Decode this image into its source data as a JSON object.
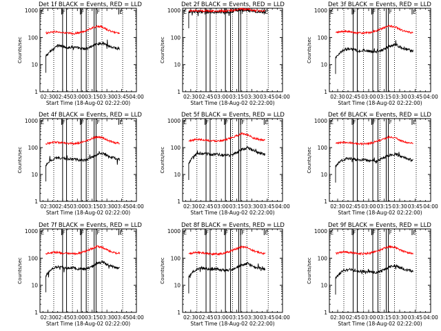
{
  "figure": {
    "xlabel": "Start Time (18-Aug-02 02:22:00)",
    "ylabel": "Counts/sec",
    "colors": {
      "events": "#000000",
      "lld": "#ff0000",
      "axes": "#000000"
    }
  },
  "chart_data": [
    {
      "type": "line",
      "title": "Det 1f BLACK = Events, RED = LLD",
      "xlabel": "Start Time (18-Aug-02 02:22:00)",
      "ylabel": "Counts/sec",
      "x_ticks": [
        "02:30",
        "02:45",
        "03:00",
        "03:15",
        "03:30",
        "03:45",
        "04:00"
      ],
      "y_ticks": [
        "1",
        "10",
        "100",
        "1000"
      ],
      "y_scale": "log",
      "ylim": [
        1,
        1200
      ],
      "xlim": [
        "02:22",
        "04:00"
      ],
      "flags": [
        {
          "label": "E",
          "at": "02:22"
        },
        {
          "label": "F",
          "at": "02:44"
        },
        {
          "label": "F",
          "at": "03:03"
        },
        {
          "label": "F",
          "at": "03:19"
        },
        {
          "label": "E",
          "at": "03:42"
        }
      ],
      "boxes": [
        [
          "02:45",
          "02:49"
        ],
        [
          "03:04",
          "03:09"
        ],
        [
          "03:17",
          "03:19"
        ]
      ],
      "dotted_lines": [
        "02:36",
        "02:55",
        "03:11",
        "03:25",
        "03:46"
      ],
      "x_knots": [
        "02:28",
        "02:32",
        "02:36",
        "02:40",
        "02:45",
        "02:50",
        "02:56",
        "03:02",
        "03:08",
        "03:14",
        "03:20",
        "03:26",
        "03:32",
        "03:38",
        "03:43"
      ],
      "series": [
        {
          "name": "Events",
          "values": [
            20,
            30,
            40,
            50,
            48,
            42,
            45,
            40,
            38,
            46,
            58,
            62,
            48,
            42,
            38
          ]
        },
        {
          "name": "LLD",
          "values": [
            145,
            155,
            165,
            160,
            150,
            145,
            140,
            150,
            175,
            215,
            260,
            240,
            180,
            155,
            148
          ]
        }
      ]
    },
    {
      "type": "line",
      "title": "Det 2f BLACK = Events, RED = LLD",
      "xlabel": "Start Time (18-Aug-02 02:22:00)",
      "ylabel": "Counts/sec",
      "x_ticks": [
        "02:30",
        "02:45",
        "03:00",
        "03:15",
        "03:30",
        "03:45",
        "04:00"
      ],
      "y_ticks": [
        "1",
        "10",
        "100",
        "1000"
      ],
      "y_scale": "log",
      "ylim": [
        1,
        1200
      ],
      "xlim": [
        "02:22",
        "04:00"
      ],
      "flags": [
        {
          "label": "E",
          "at": "02:22"
        },
        {
          "label": "F",
          "at": "02:44"
        },
        {
          "label": "F",
          "at": "03:03"
        },
        {
          "label": "F",
          "at": "03:19"
        },
        {
          "label": "E",
          "at": "03:42"
        }
      ],
      "boxes": [
        [
          "02:45",
          "02:49"
        ],
        [
          "03:04",
          "03:09"
        ],
        [
          "03:17",
          "03:19"
        ]
      ],
      "dotted_lines": [
        "02:36",
        "02:55",
        "03:11",
        "03:25",
        "03:46"
      ],
      "x_knots": [
        "02:28",
        "02:32",
        "02:36",
        "02:40",
        "02:45",
        "02:50",
        "02:56",
        "03:02",
        "03:08",
        "03:14",
        "03:20",
        "03:26",
        "03:32",
        "03:38",
        "03:43"
      ],
      "series": [
        {
          "name": "Events",
          "values": [
            880,
            900,
            910,
            900,
            880,
            870,
            870,
            880,
            900,
            980,
            1060,
            1000,
            920,
            900,
            890
          ]
        },
        {
          "name": "LLD",
          "values": [
            960,
            970,
            980,
            970,
            960,
            950,
            950,
            960,
            980,
            1050,
            1120,
            1080,
            1000,
            970,
            960
          ]
        }
      ]
    },
    {
      "type": "line",
      "title": "Det 3f BLACK = Events, RED = LLD",
      "xlabel": "Start Time (18-Aug-02 02:22:00)",
      "ylabel": "Counts/sec",
      "x_ticks": [
        "02:30",
        "02:45",
        "03:00",
        "03:15",
        "03:30",
        "03:45",
        "04:00"
      ],
      "y_ticks": [
        "1",
        "10",
        "100",
        "1000"
      ],
      "y_scale": "log",
      "ylim": [
        1,
        1200
      ],
      "xlim": [
        "02:22",
        "04:00"
      ],
      "flags": [
        {
          "label": "E",
          "at": "02:22"
        },
        {
          "label": "F",
          "at": "02:44"
        },
        {
          "label": "F",
          "at": "03:03"
        },
        {
          "label": "F",
          "at": "03:19"
        },
        {
          "label": "E",
          "at": "03:42"
        }
      ],
      "boxes": [
        [
          "02:45",
          "02:49"
        ],
        [
          "03:04",
          "03:09"
        ],
        [
          "03:17",
          "03:19"
        ]
      ],
      "dotted_lines": [
        "02:36",
        "02:55",
        "03:11",
        "03:25",
        "03:46"
      ],
      "x_knots": [
        "02:28",
        "02:32",
        "02:36",
        "02:40",
        "02:45",
        "02:50",
        "02:56",
        "03:02",
        "03:08",
        "03:14",
        "03:20",
        "03:26",
        "03:32",
        "03:38",
        "03:43"
      ],
      "series": [
        {
          "name": "Events",
          "values": [
            18,
            28,
            34,
            38,
            36,
            32,
            34,
            30,
            30,
            36,
            48,
            55,
            42,
            36,
            32
          ]
        },
        {
          "name": "LLD",
          "values": [
            150,
            160,
            170,
            165,
            155,
            150,
            145,
            155,
            180,
            220,
            270,
            245,
            185,
            160,
            150
          ]
        }
      ]
    },
    {
      "type": "line",
      "title": "Det 4f BLACK = Events, RED = LLD",
      "xlabel": "Start Time (18-Aug-02 02:22:00)",
      "ylabel": "Counts/sec",
      "x_ticks": [
        "02:30",
        "02:45",
        "03:00",
        "03:15",
        "03:30",
        "03:45",
        "04:00"
      ],
      "y_ticks": [
        "1",
        "10",
        "100",
        "1000"
      ],
      "y_scale": "log",
      "ylim": [
        1,
        1200
      ],
      "xlim": [
        "02:22",
        "04:00"
      ],
      "flags": [
        {
          "label": "E",
          "at": "02:22"
        },
        {
          "label": "F",
          "at": "02:44"
        },
        {
          "label": "F",
          "at": "03:03"
        },
        {
          "label": "F",
          "at": "03:19"
        },
        {
          "label": "E",
          "at": "03:42"
        }
      ],
      "boxes": [
        [
          "02:45",
          "02:49"
        ],
        [
          "03:04",
          "03:09"
        ],
        [
          "03:17",
          "03:19"
        ]
      ],
      "dotted_lines": [
        "02:36",
        "02:55",
        "03:11",
        "03:25",
        "03:46"
      ],
      "x_knots": [
        "02:28",
        "02:32",
        "02:36",
        "02:40",
        "02:45",
        "02:50",
        "02:56",
        "03:02",
        "03:08",
        "03:14",
        "03:20",
        "03:26",
        "03:32",
        "03:38",
        "03:43"
      ],
      "series": [
        {
          "name": "Events",
          "values": [
            22,
            32,
            38,
            42,
            40,
            36,
            38,
            34,
            34,
            42,
            55,
            60,
            46,
            40,
            36
          ]
        },
        {
          "name": "LLD",
          "values": [
            140,
            150,
            160,
            158,
            150,
            142,
            140,
            150,
            172,
            212,
            255,
            235,
            178,
            152,
            145
          ]
        }
      ]
    },
    {
      "type": "line",
      "title": "Det 5f BLACK = Events, RED = LLD",
      "xlabel": "Start Time (18-Aug-02 02:22:00)",
      "ylabel": "Counts/sec",
      "x_ticks": [
        "02:30",
        "02:45",
        "03:00",
        "03:15",
        "03:30",
        "03:45",
        "04:00"
      ],
      "y_ticks": [
        "1",
        "10",
        "100",
        "1000"
      ],
      "y_scale": "log",
      "ylim": [
        1,
        1200
      ],
      "xlim": [
        "02:22",
        "04:00"
      ],
      "flags": [
        {
          "label": "E",
          "at": "02:22"
        },
        {
          "label": "F",
          "at": "02:44"
        },
        {
          "label": "F",
          "at": "03:03"
        },
        {
          "label": "F",
          "at": "03:19"
        },
        {
          "label": "E",
          "at": "03:42"
        }
      ],
      "boxes": [
        [
          "02:45",
          "02:49"
        ],
        [
          "03:04",
          "03:09"
        ],
        [
          "03:17",
          "03:19"
        ]
      ],
      "dotted_lines": [
        "02:36",
        "02:55",
        "03:11",
        "03:25",
        "03:46"
      ],
      "x_knots": [
        "02:28",
        "02:32",
        "02:36",
        "02:40",
        "02:45",
        "02:50",
        "02:56",
        "03:02",
        "03:08",
        "03:14",
        "03:20",
        "03:26",
        "03:32",
        "03:38",
        "03:43"
      ],
      "series": [
        {
          "name": "Events",
          "values": [
            25,
            45,
            58,
            62,
            60,
            55,
            56,
            52,
            52,
            62,
            85,
            100,
            75,
            62,
            55
          ]
        },
        {
          "name": "LLD",
          "values": [
            175,
            190,
            205,
            200,
            190,
            180,
            178,
            190,
            215,
            265,
            330,
            300,
            225,
            195,
            185
          ]
        }
      ]
    },
    {
      "type": "line",
      "title": "Det 6f BLACK = Events, RED = LLD",
      "xlabel": "Start Time (18-Aug-02 02:22:00)",
      "ylabel": "Counts/sec",
      "x_ticks": [
        "02:30",
        "02:45",
        "03:00",
        "03:15",
        "03:30",
        "03:45",
        "04:00"
      ],
      "y_ticks": [
        "1",
        "10",
        "100",
        "1000"
      ],
      "y_scale": "log",
      "ylim": [
        1,
        1200
      ],
      "xlim": [
        "02:22",
        "04:00"
      ],
      "flags": [
        {
          "label": "E",
          "at": "02:22"
        },
        {
          "label": "F",
          "at": "02:44"
        },
        {
          "label": "F",
          "at": "03:03"
        },
        {
          "label": "F",
          "at": "03:19"
        },
        {
          "label": "E",
          "at": "03:42"
        }
      ],
      "boxes": [
        [
          "02:45",
          "02:49"
        ],
        [
          "03:04",
          "03:09"
        ],
        [
          "03:17",
          "03:19"
        ]
      ],
      "dotted_lines": [
        "02:36",
        "02:55",
        "03:11",
        "03:25",
        "03:46"
      ],
      "x_knots": [
        "02:28",
        "02:32",
        "02:36",
        "02:40",
        "02:45",
        "02:50",
        "02:56",
        "03:02",
        "03:08",
        "03:14",
        "03:20",
        "03:26",
        "03:32",
        "03:38",
        "03:43"
      ],
      "series": [
        {
          "name": "Events",
          "values": [
            20,
            30,
            36,
            40,
            38,
            34,
            36,
            32,
            32,
            40,
            52,
            58,
            44,
            38,
            34
          ]
        },
        {
          "name": "LLD",
          "values": [
            140,
            150,
            160,
            155,
            148,
            140,
            138,
            148,
            170,
            210,
            250,
            232,
            176,
            150,
            144
          ]
        }
      ]
    },
    {
      "type": "line",
      "title": "Det 7f BLACK = Events, RED = LLD",
      "xlabel": "Start Time (18-Aug-02 02:22:00)",
      "ylabel": "Counts/sec",
      "x_ticks": [
        "02:30",
        "02:45",
        "03:00",
        "03:15",
        "03:30",
        "03:45",
        "04:00"
      ],
      "y_ticks": [
        "1",
        "10",
        "100",
        "1000"
      ],
      "y_scale": "log",
      "ylim": [
        1,
        1200
      ],
      "xlim": [
        "02:22",
        "04:00"
      ],
      "flags": [
        {
          "label": "E",
          "at": "02:22"
        },
        {
          "label": "F",
          "at": "02:44"
        },
        {
          "label": "F",
          "at": "03:03"
        },
        {
          "label": "F",
          "at": "03:19"
        },
        {
          "label": "E",
          "at": "03:42"
        }
      ],
      "boxes": [
        [
          "02:45",
          "02:49"
        ],
        [
          "03:04",
          "03:09"
        ],
        [
          "03:17",
          "03:19"
        ]
      ],
      "dotted_lines": [
        "02:36",
        "02:55",
        "03:11",
        "03:25",
        "03:46"
      ],
      "x_knots": [
        "02:28",
        "02:32",
        "02:36",
        "02:40",
        "02:45",
        "02:50",
        "02:56",
        "03:02",
        "03:08",
        "03:14",
        "03:20",
        "03:26",
        "03:32",
        "03:38",
        "03:43"
      ],
      "series": [
        {
          "name": "Events",
          "values": [
            22,
            36,
            44,
            48,
            46,
            42,
            44,
            40,
            40,
            48,
            64,
            72,
            54,
            46,
            42
          ]
        },
        {
          "name": "LLD",
          "values": [
            148,
            158,
            168,
            162,
            154,
            146,
            144,
            154,
            178,
            222,
            268,
            246,
            184,
            158,
            150
          ]
        }
      ]
    },
    {
      "type": "line",
      "title": "Det 8f BLACK = Events, RED = LLD",
      "xlabel": "Start Time (18-Aug-02 02:22:00)",
      "ylabel": "Counts/sec",
      "x_ticks": [
        "02:30",
        "02:45",
        "03:00",
        "03:15",
        "03:30",
        "03:45",
        "04:00"
      ],
      "y_ticks": [
        "1",
        "10",
        "100",
        "1000"
      ],
      "y_scale": "log",
      "ylim": [
        1,
        1200
      ],
      "xlim": [
        "02:22",
        "04:00"
      ],
      "flags": [
        {
          "label": "E",
          "at": "02:22"
        },
        {
          "label": "F",
          "at": "02:44"
        },
        {
          "label": "F",
          "at": "03:03"
        },
        {
          "label": "F",
          "at": "03:19"
        },
        {
          "label": "E",
          "at": "03:42"
        }
      ],
      "boxes": [
        [
          "02:45",
          "02:49"
        ],
        [
          "03:04",
          "03:09"
        ],
        [
          "03:17",
          "03:19"
        ]
      ],
      "dotted_lines": [
        "02:36",
        "02:55",
        "03:11",
        "03:25",
        "03:46"
      ],
      "x_knots": [
        "02:28",
        "02:32",
        "02:36",
        "02:40",
        "02:45",
        "02:50",
        "02:56",
        "03:02",
        "03:08",
        "03:14",
        "03:20",
        "03:26",
        "03:32",
        "03:38",
        "03:43"
      ],
      "series": [
        {
          "name": "Events",
          "values": [
            20,
            32,
            40,
            44,
            42,
            38,
            40,
            36,
            36,
            44,
            58,
            64,
            48,
            42,
            38
          ]
        },
        {
          "name": "LLD",
          "values": [
            146,
            156,
            166,
            160,
            152,
            144,
            142,
            152,
            176,
            218,
            262,
            242,
            182,
            156,
            148
          ]
        }
      ]
    },
    {
      "type": "line",
      "title": "Det 9f BLACK = Events, RED = LLD",
      "xlabel": "Start Time (18-Aug-02 02:22:00)",
      "ylabel": "Counts/sec",
      "x_ticks": [
        "02:30",
        "02:45",
        "03:00",
        "03:15",
        "03:30",
        "03:45",
        "04:00"
      ],
      "y_ticks": [
        "1",
        "10",
        "100",
        "1000"
      ],
      "y_scale": "log",
      "ylim": [
        1,
        1200
      ],
      "xlim": [
        "02:22",
        "04:00"
      ],
      "flags": [
        {
          "label": "E",
          "at": "02:22"
        },
        {
          "label": "F",
          "at": "02:44"
        },
        {
          "label": "F",
          "at": "03:03"
        },
        {
          "label": "F",
          "at": "03:19"
        },
        {
          "label": "E",
          "at": "03:42"
        }
      ],
      "boxes": [
        [
          "02:45",
          "02:49"
        ],
        [
          "03:04",
          "03:09"
        ],
        [
          "03:17",
          "03:19"
        ]
      ],
      "dotted_lines": [
        "02:36",
        "02:55",
        "03:11",
        "03:25",
        "03:46"
      ],
      "x_knots": [
        "02:28",
        "02:32",
        "02:36",
        "02:40",
        "02:45",
        "02:50",
        "02:56",
        "03:02",
        "03:08",
        "03:14",
        "03:20",
        "03:26",
        "03:32",
        "03:38",
        "03:43"
      ],
      "series": [
        {
          "name": "Events",
          "values": [
            18,
            28,
            34,
            38,
            36,
            32,
            34,
            30,
            30,
            36,
            48,
            54,
            42,
            36,
            32
          ]
        },
        {
          "name": "LLD",
          "values": [
            150,
            160,
            170,
            164,
            156,
            148,
            146,
            156,
            180,
            224,
            270,
            248,
            186,
            160,
            152
          ]
        }
      ]
    }
  ]
}
